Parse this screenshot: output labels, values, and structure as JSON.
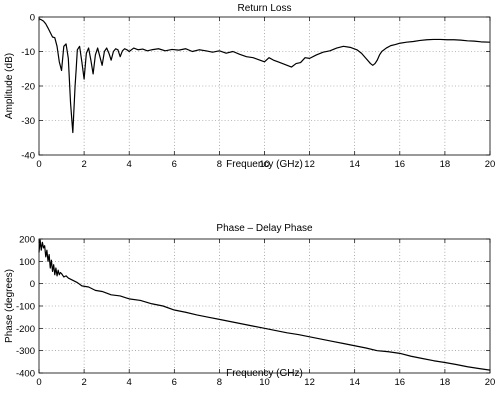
{
  "chart_data": [
    {
      "type": "line",
      "title": "Return Loss",
      "xlabel": "Frequency (GHz)",
      "ylabel": "Amplitude (dB)",
      "xlim": [
        0,
        20
      ],
      "ylim": [
        -40,
        0
      ],
      "xticks": [
        0,
        2,
        4,
        6,
        8,
        10,
        12,
        14,
        16,
        18,
        20
      ],
      "yticks": [
        -40,
        -30,
        -20,
        -10,
        0
      ],
      "grid": true,
      "series": [
        {
          "x": [
            0.0,
            0.1,
            0.2,
            0.3,
            0.4,
            0.5,
            0.6,
            0.7,
            0.8,
            0.9,
            1.0,
            1.1,
            1.2,
            1.3,
            1.4,
            1.5,
            1.6,
            1.65,
            1.7,
            1.8,
            1.9,
            2.0,
            2.1,
            2.2,
            2.3,
            2.4,
            2.5,
            2.6,
            2.7,
            2.8,
            2.9,
            3.0,
            3.1,
            3.2,
            3.3,
            3.4,
            3.5,
            3.6,
            3.7,
            3.8,
            3.9,
            4.0,
            4.2,
            4.4,
            4.6,
            4.8,
            5.0,
            5.3,
            5.6,
            5.9,
            6.2,
            6.5,
            6.8,
            7.1,
            7.4,
            7.7,
            8.0,
            8.3,
            8.6,
            8.9,
            9.2,
            9.5,
            9.8,
            10.0,
            10.2,
            10.4,
            10.6,
            10.8,
            11.0,
            11.2,
            11.4,
            11.6,
            11.8,
            12.0,
            12.3,
            12.6,
            12.9,
            13.2,
            13.5,
            13.8,
            14.1,
            14.3,
            14.5,
            14.7,
            14.8,
            14.9,
            15.0,
            15.1,
            15.2,
            15.4,
            15.6,
            15.8,
            16.0,
            16.3,
            16.6,
            16.9,
            17.2,
            17.5,
            17.8,
            18.1,
            18.4,
            18.7,
            19.0,
            19.3,
            19.6,
            20.0
          ],
          "y": [
            -0.5,
            -0.8,
            -1.2,
            -2.0,
            -3.2,
            -4.5,
            -5.8,
            -6.0,
            -8.5,
            -13.0,
            -15.5,
            -8.5,
            -7.8,
            -12.0,
            -25.0,
            -33.5,
            -20.0,
            -15.0,
            -9.5,
            -8.5,
            -13.0,
            -18.0,
            -10.5,
            -9.0,
            -12.5,
            -16.5,
            -11.0,
            -9.0,
            -11.5,
            -14.0,
            -10.0,
            -9.0,
            -10.5,
            -12.5,
            -10.0,
            -9.2,
            -9.5,
            -11.5,
            -9.8,
            -9.2,
            -9.5,
            -10.0,
            -9.0,
            -9.5,
            -9.3,
            -9.8,
            -9.5,
            -9.2,
            -9.8,
            -9.4,
            -9.6,
            -9.2,
            -10.0,
            -9.5,
            -9.8,
            -10.2,
            -9.8,
            -10.5,
            -10.0,
            -10.8,
            -11.5,
            -11.8,
            -12.5,
            -13.0,
            -11.8,
            -12.5,
            -13.0,
            -13.5,
            -14.0,
            -14.5,
            -13.5,
            -13.2,
            -11.8,
            -12.0,
            -11.0,
            -10.2,
            -9.8,
            -9.0,
            -8.5,
            -8.8,
            -9.5,
            -10.5,
            -12.0,
            -13.5,
            -14.0,
            -13.5,
            -12.5,
            -11.0,
            -10.0,
            -9.0,
            -8.3,
            -8.0,
            -7.6,
            -7.3,
            -7.1,
            -6.8,
            -6.6,
            -6.5,
            -6.5,
            -6.6,
            -6.6,
            -6.7,
            -6.9,
            -7.0,
            -7.2,
            -7.3
          ]
        }
      ]
    },
    {
      "type": "line",
      "title": "Phase – Delay Phase",
      "xlabel": "Frequency (GHz)",
      "ylabel": "Phase (degrees)",
      "xlim": [
        0,
        20
      ],
      "ylim": [
        -400,
        200
      ],
      "xticks": [
        0,
        2,
        4,
        6,
        8,
        10,
        12,
        14,
        16,
        18,
        20
      ],
      "yticks": [
        -400,
        -300,
        -200,
        -100,
        0,
        100,
        200
      ],
      "grid": true,
      "series": [
        {
          "x": [
            0.0,
            0.05,
            0.1,
            0.15,
            0.2,
            0.25,
            0.3,
            0.35,
            0.4,
            0.45,
            0.5,
            0.55,
            0.6,
            0.65,
            0.7,
            0.75,
            0.8,
            0.85,
            0.9,
            0.95,
            1.0,
            1.1,
            1.2,
            1.3,
            1.4,
            1.5,
            1.7,
            1.9,
            2.2,
            2.5,
            2.8,
            3.2,
            3.6,
            4.0,
            4.5,
            5.0,
            5.5,
            6.0,
            6.5,
            7.0,
            7.5,
            8.0,
            8.5,
            9.0,
            9.5,
            10.0,
            10.5,
            11.0,
            11.5,
            12.0,
            12.5,
            13.0,
            13.5,
            14.0,
            14.5,
            15.0,
            15.5,
            16.0,
            16.5,
            17.0,
            17.5,
            18.0,
            18.5,
            19.0,
            19.5,
            20.0
          ],
          "y": [
            140,
            195,
            150,
            185,
            160,
            170,
            120,
            150,
            100,
            130,
            70,
            105,
            55,
            85,
            40,
            70,
            35,
            60,
            40,
            50,
            45,
            30,
            35,
            25,
            20,
            15,
            5,
            -10,
            -15,
            -30,
            -35,
            -50,
            -55,
            -68,
            -75,
            -90,
            -100,
            -118,
            -128,
            -140,
            -150,
            -160,
            -170,
            -180,
            -190,
            -200,
            -210,
            -220,
            -228,
            -238,
            -248,
            -258,
            -268,
            -278,
            -288,
            -300,
            -305,
            -312,
            -325,
            -335,
            -345,
            -353,
            -362,
            -372,
            -380,
            -387
          ]
        }
      ]
    }
  ]
}
